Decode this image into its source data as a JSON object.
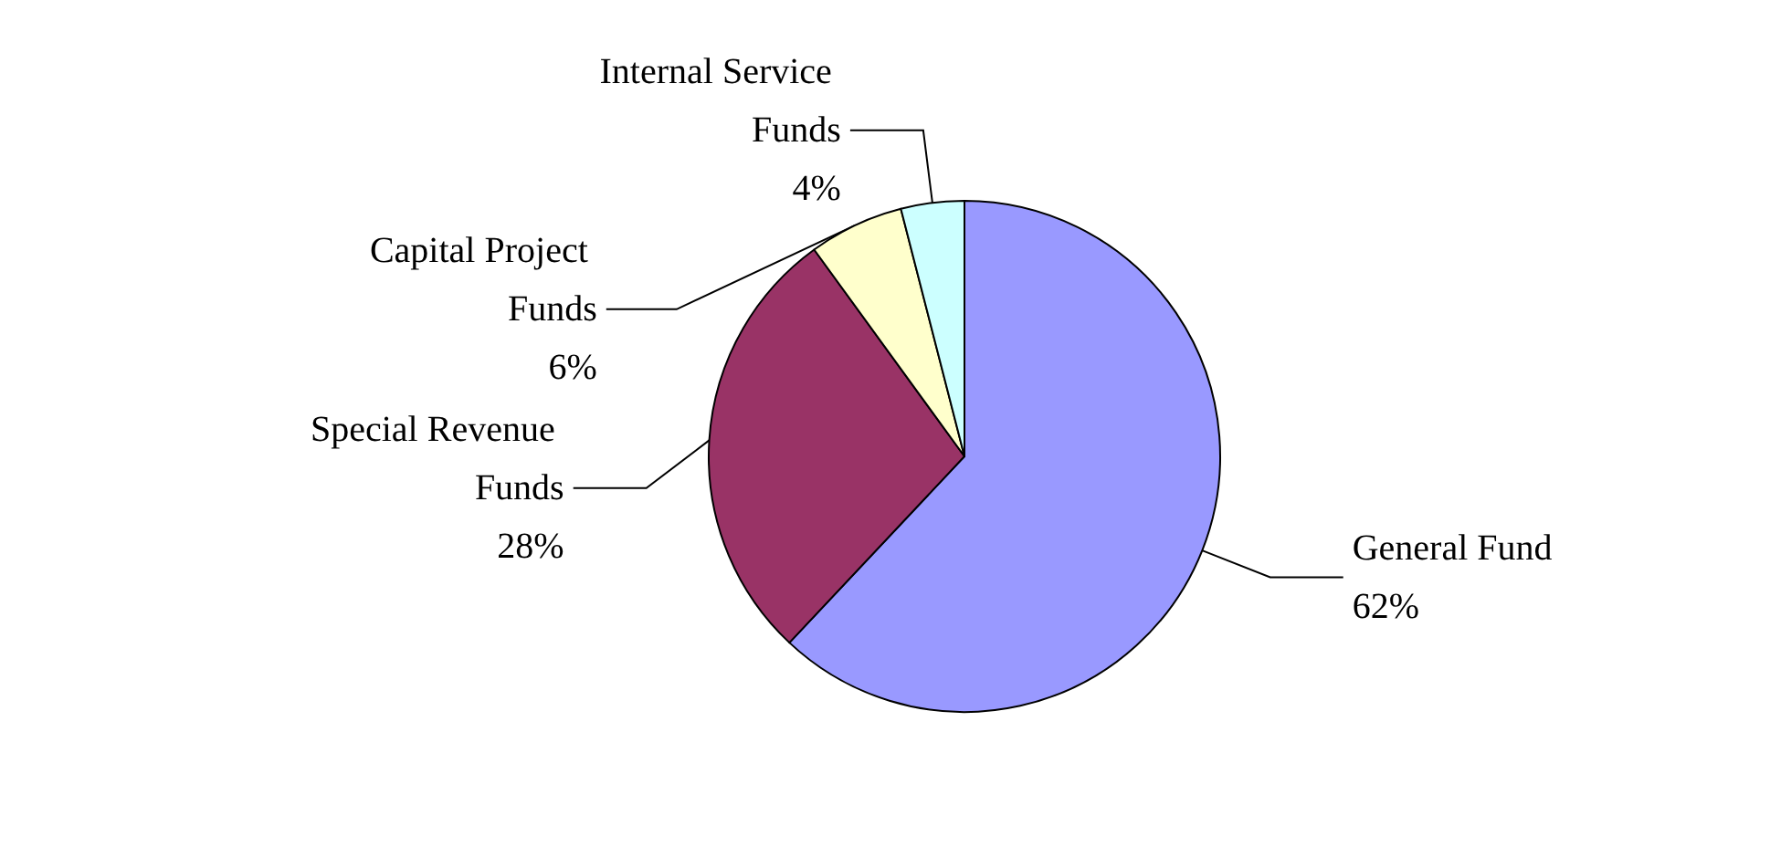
{
  "chart_data": {
    "type": "pie",
    "categories": [
      "General Fund",
      "Special Revenue Funds",
      "Capital Project Funds",
      "Internal Service Funds"
    ],
    "values": [
      62,
      28,
      6,
      4
    ],
    "value_labels": [
      "62%",
      "28%",
      "6%",
      "4%"
    ],
    "colors": [
      "#9999ff",
      "#993366",
      "#ffffcc",
      "#ccffff"
    ]
  }
}
